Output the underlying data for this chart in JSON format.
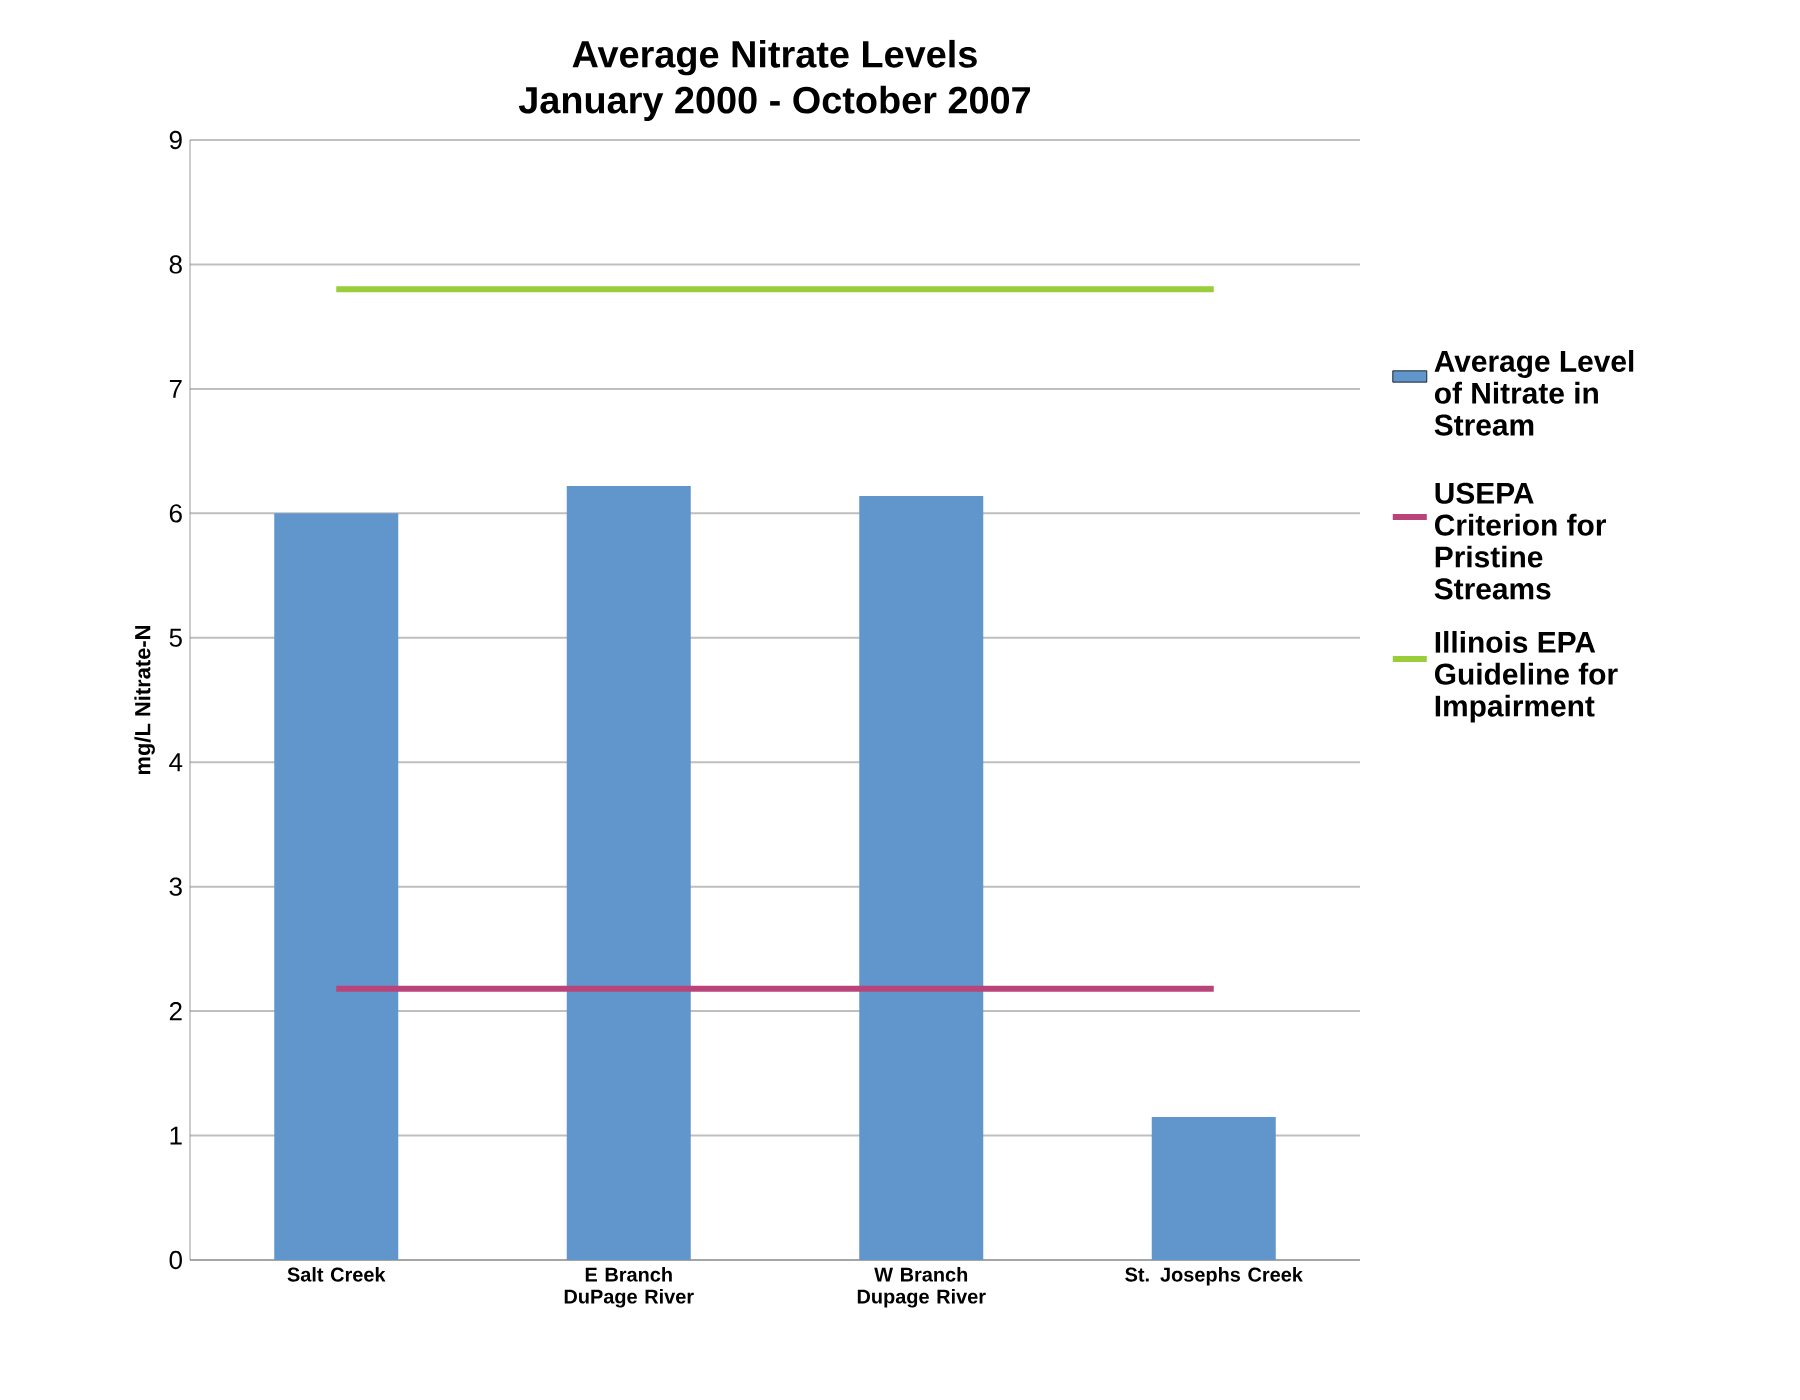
{
  "chart_data": {
    "type": "bar",
    "title": "Average Nitrate Levels",
    "subtitle": "January 2000 - October 2007",
    "ylabel": "mg/L Nitrate-N",
    "categories": [
      "Salt Creek",
      "E Branch DuPage River",
      "W Branch Dupage River",
      "St. Josephs Creek"
    ],
    "series": [
      {
        "name": "Average Level of Nitrate in Stream",
        "color": "#6096cc",
        "values": [
          6.0,
          6.22,
          6.14,
          1.15
        ]
      },
      {
        "type": "line",
        "name": "USEPA Criterion for Pristine Streams",
        "color": "#b8447a",
        "values": [
          2.18,
          2.18,
          2.18,
          2.18
        ]
      },
      {
        "type": "line",
        "name": "Illinois EPA Guideline for Impairment",
        "color": "#9acd3a",
        "values": [
          7.8,
          7.8,
          7.8,
          7.8
        ]
      }
    ],
    "ylim": [
      0,
      9
    ],
    "yticks": [
      0,
      1,
      2,
      3,
      4,
      5,
      6,
      7,
      8,
      9
    ],
    "grid": "y",
    "legend": "right"
  }
}
